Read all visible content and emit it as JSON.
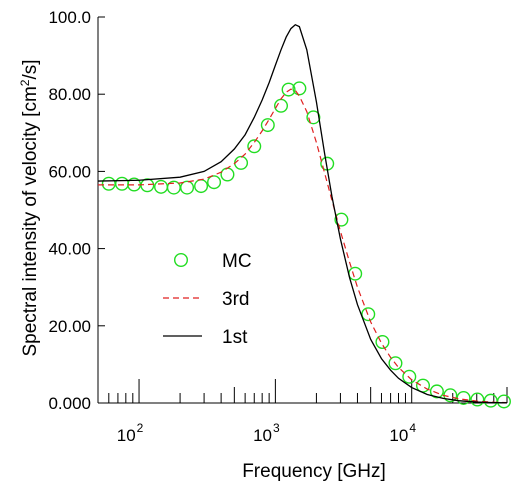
{
  "chart_data": {
    "type": "line",
    "xlabel": "Frequency  [GHz]",
    "ylabel_main": "Spectral intensity of velocity [cm",
    "ylabel_sup": "2",
    "ylabel_tail": "/s]",
    "xscale": "log",
    "xlim": [
      50,
      50000
    ],
    "ylim": [
      0,
      100
    ],
    "yticks": [
      0,
      20,
      40,
      60,
      80,
      100
    ],
    "ytick_labels": [
      "0.000",
      "20.00",
      "40.00",
      "60.00",
      "80.00",
      "100.0"
    ],
    "xtick_major": [
      100,
      1000,
      10000
    ],
    "xtick_labels": [
      {
        "base": "10",
        "exp": "2"
      },
      {
        "base": "10",
        "exp": "3"
      },
      {
        "base": "10",
        "exp": "4"
      }
    ],
    "legend_position": "center-left",
    "series": [
      {
        "name": "MC",
        "style": "circles",
        "color": "#22dd22",
        "x": [
          60,
          75,
          92,
          115,
          145,
          180,
          225,
          285,
          355,
          445,
          560,
          700,
          880,
          1100,
          1250,
          1500,
          1900,
          2400,
          3050,
          3850,
          4800,
          6100,
          7600,
          9600,
          12100,
          15300,
          19200,
          24000,
          30300,
          38000,
          47500
        ],
        "y": [
          56.8,
          56.8,
          56.6,
          56.4,
          56.0,
          55.8,
          55.8,
          56.2,
          57.2,
          59.2,
          62.2,
          66.5,
          72.0,
          77.0,
          81.2,
          81.5,
          74.0,
          62.0,
          47.5,
          33.5,
          23.0,
          15.8,
          10.3,
          6.8,
          4.5,
          3.0,
          2.0,
          1.3,
          0.9,
          0.6,
          0.4
        ]
      },
      {
        "name": "3rd",
        "style": "dashed",
        "color": "#e02020",
        "x": [
          50,
          100,
          200,
          300,
          400,
          500,
          600,
          700,
          800,
          900,
          1000,
          1100,
          1200,
          1300,
          1400,
          1500,
          1700,
          2000,
          2300,
          2600,
          3000,
          3500,
          4000,
          5000,
          6000,
          7000,
          8000,
          10000,
          13000,
          17000,
          22000,
          30000,
          40000,
          50000
        ],
        "y": [
          56.5,
          56.5,
          57.0,
          58.0,
          59.8,
          62.0,
          64.5,
          67.5,
          70.5,
          73.5,
          76.3,
          78.8,
          80.5,
          81.3,
          81.0,
          79.5,
          75.5,
          67.5,
          59.5,
          52.5,
          44.5,
          36.5,
          30.0,
          21.0,
          15.5,
          11.8,
          9.2,
          6.0,
          3.6,
          2.0,
          1.1,
          0.5,
          0.2,
          0.1
        ]
      },
      {
        "name": "1st",
        "style": "solid",
        "color": "#000000",
        "x": [
          50,
          100,
          200,
          300,
          400,
          500,
          600,
          700,
          800,
          900,
          1000,
          1100,
          1200,
          1300,
          1400,
          1500,
          1700,
          2000,
          2300,
          2600,
          3000,
          3500,
          4000,
          5000,
          6000,
          7000,
          8000,
          10000,
          13000,
          17000,
          22000,
          30000,
          40000,
          50000
        ],
        "y": [
          57.5,
          57.7,
          58.5,
          60.0,
          62.5,
          65.8,
          69.5,
          74.0,
          78.5,
          83.0,
          87.5,
          91.5,
          94.8,
          97.0,
          98.0,
          97.5,
          91.5,
          78.0,
          64.5,
          53.5,
          42.5,
          32.5,
          25.5,
          16.5,
          11.5,
          8.5,
          6.4,
          4.0,
          2.2,
          1.2,
          0.6,
          0.25,
          0.1,
          0.05
        ]
      }
    ]
  }
}
